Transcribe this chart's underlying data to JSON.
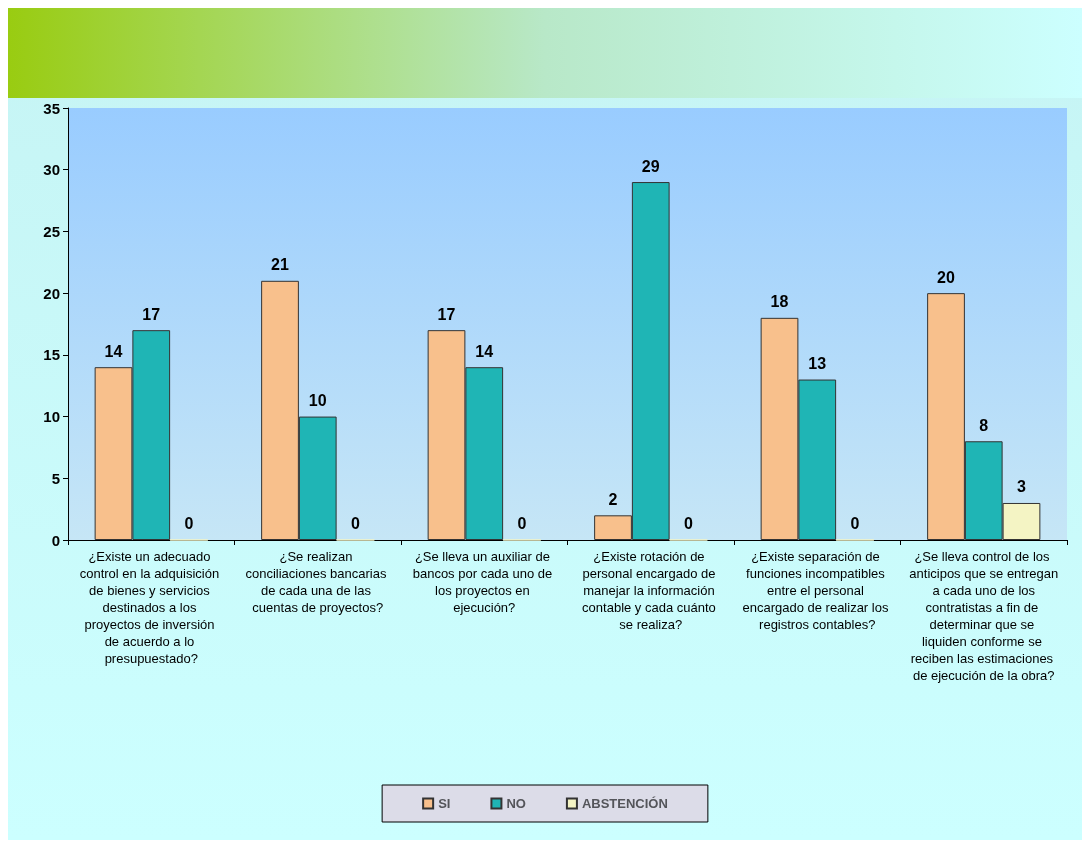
{
  "chart_data": {
    "type": "bar",
    "categories": [
      "¿Existe un adecuado control en la adquisición de bienes y servicios destinados a los proyectos de inversión de acuerdo a lo presupuestado?",
      "¿Se realizan conciliaciones bancarias de cada una de las cuentas de proyectos?",
      "¿Se lleva un auxiliar de bancos por cada uno de los proyectos en ejecución?",
      "¿Existe rotación de personal encargado de manejar la información contable y cada cuánto se realiza?",
      "¿Existe separación de funciones incompatibles entre el personal encargado de realizar los registros contables?",
      "¿Se lleva control de los anticipos que se entregan a cada uno de los contratistas a fin de determinar que se liquiden conforme se reciben las estimaciones de ejecución de la obra?"
    ],
    "series": [
      {
        "name": "SI",
        "color": "#f8c08c",
        "values": [
          14,
          21,
          17,
          2,
          18,
          20
        ]
      },
      {
        "name": "NO",
        "color": "#1fb5b5",
        "values": [
          17,
          10,
          14,
          29,
          13,
          8
        ]
      },
      {
        "name": "ABSTENCIÓN",
        "color": "#f4f4c4",
        "values": [
          0,
          0,
          0,
          0,
          0,
          3
        ]
      }
    ],
    "ylim": [
      0,
      35
    ],
    "yticks": [
      0,
      5,
      10,
      15,
      20,
      25,
      30,
      35
    ],
    "grid": false,
    "legend": "bottom",
    "data_labels": true
  }
}
